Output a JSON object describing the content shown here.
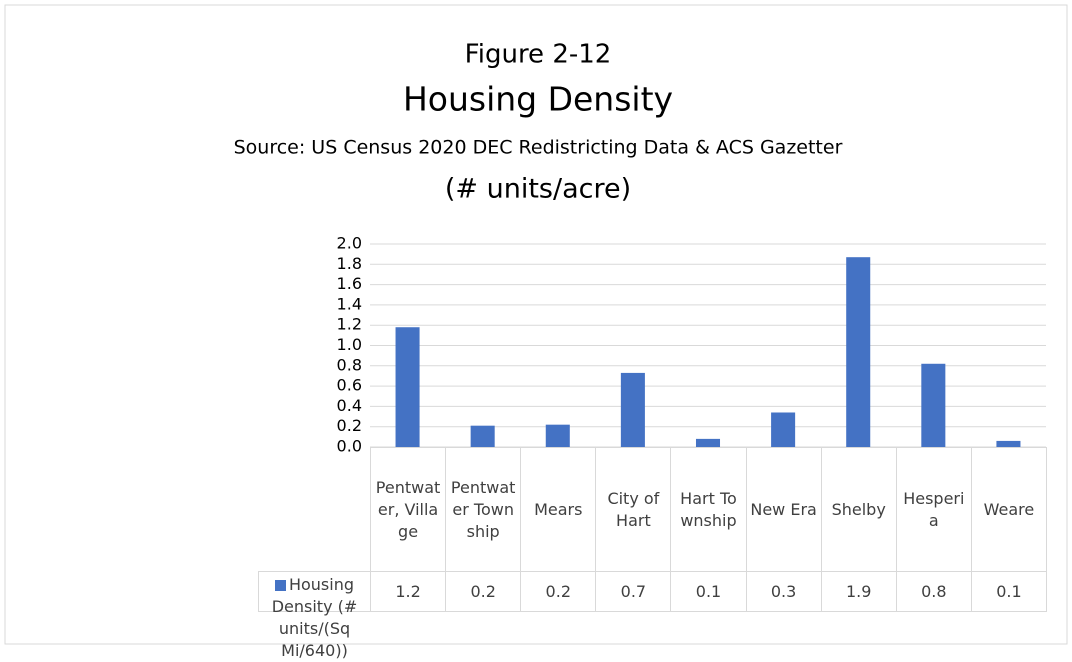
{
  "chart_data": {
    "type": "bar",
    "figure_label": "Figure 2-12",
    "title": "Housing Density",
    "subtitle": "Source: US Census 2020 DEC Redistricting Data & ACS Gazetter",
    "unit_label": "(# units/acre)",
    "categories": [
      "Pentwater, Village",
      "Pentwater Township",
      "Mears",
      "City of Hart",
      "Hart Township",
      "New Era",
      "Shelby",
      "Hesperia",
      "Weare"
    ],
    "series": [
      {
        "name": "Housing Density (# units/(Sq Mi/640))",
        "color": "#4472c4",
        "values": [
          1.18,
          0.21,
          0.22,
          0.73,
          0.08,
          0.34,
          1.87,
          0.82,
          0.06
        ],
        "value_labels": [
          "1.2",
          "0.2",
          "0.2",
          "0.7",
          "0.1",
          "0.3",
          "1.9",
          "0.8",
          "0.1"
        ]
      }
    ],
    "ylim": [
      0,
      2
    ],
    "yticks": [
      {
        "value": 0,
        "label": "0.0"
      },
      0.2,
      0.4,
      0.6,
      0.8,
      {
        "value": 1,
        "label": "1.0"
      },
      1.2,
      1.4,
      1.6,
      1.8,
      {
        "value": 2,
        "label": "2.0"
      }
    ],
    "grid": true
  }
}
